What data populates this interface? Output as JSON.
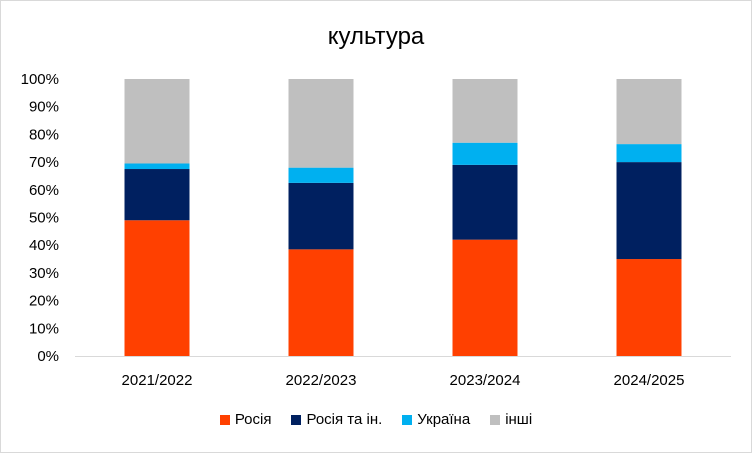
{
  "chart_data": {
    "type": "bar",
    "stacked": true,
    "title": "культура",
    "xlabel": "",
    "ylabel": "",
    "ylim": [
      0,
      100
    ],
    "yticks": [
      "0%",
      "10%",
      "20%",
      "30%",
      "40%",
      "50%",
      "60%",
      "70%",
      "80%",
      "90%",
      "100%"
    ],
    "grid": false,
    "legend_position": "bottom",
    "categories": [
      "2021/2022",
      "2022/2023",
      "2023/2024",
      "2024/2025"
    ],
    "series": [
      {
        "name": "Росія",
        "color": "#ff4000",
        "values": [
          49,
          38.5,
          42,
          35
        ]
      },
      {
        "name": "Росія та ін.",
        "color": "#002060",
        "values": [
          18.5,
          24,
          27,
          35
        ]
      },
      {
        "name": "Україна",
        "color": "#00b0f0",
        "values": [
          2,
          5.5,
          8,
          6.5
        ]
      },
      {
        "name": "інші",
        "color": "#bfbfbf",
        "values": [
          30.5,
          32,
          23,
          23.5
        ]
      }
    ]
  }
}
